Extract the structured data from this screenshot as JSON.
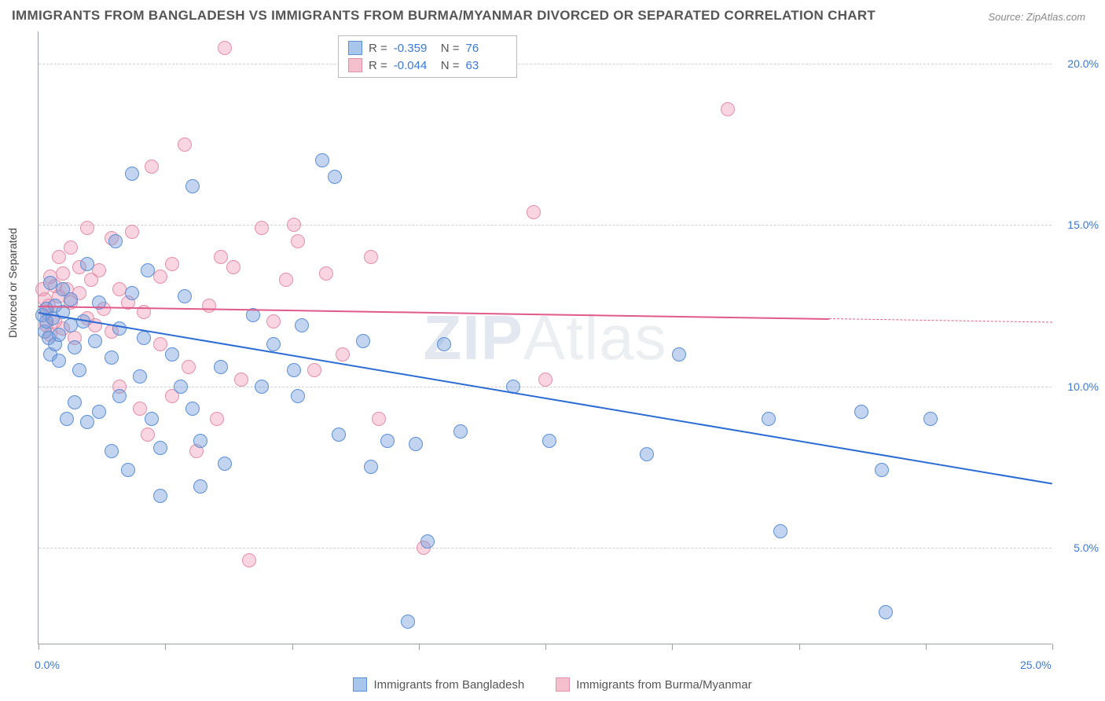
{
  "title": "IMMIGRANTS FROM BANGLADESH VS IMMIGRANTS FROM BURMA/MYANMAR DIVORCED OR SEPARATED CORRELATION CHART",
  "source": "Source: ZipAtlas.com",
  "ylabel": "Divorced or Separated",
  "watermark_bold": "ZIP",
  "watermark_rest": "Atlas",
  "chart": {
    "type": "scatter",
    "xlim": [
      0,
      25
    ],
    "ylim": [
      2,
      21
    ],
    "x_ticks": [
      0,
      3.125,
      6.25,
      9.375,
      12.5,
      15.625,
      18.75,
      21.875,
      25
    ],
    "x_labels_shown": {
      "0": "0.0%",
      "25": "25.0%"
    },
    "y_gridlines": [
      5,
      10,
      15,
      20
    ],
    "y_labels": {
      "5": "5.0%",
      "10": "10.0%",
      "15": "15.0%",
      "20": "20.0%"
    },
    "background_color": "#ffffff",
    "grid_color": "#d0d0d0",
    "axis_color": "#9aa0a6",
    "point_radius": 9,
    "point_stroke_width": 1,
    "series": [
      {
        "name": "Immigrants from Bangladesh",
        "fill": "rgba(120,160,220,0.45)",
        "stroke": "#5b8fd6",
        "swatch_fill": "#a8c5ec",
        "swatch_border": "#5b8fd6",
        "R": "-0.359",
        "N": "76",
        "trend": {
          "x1": 0,
          "y1": 12.3,
          "x2": 25,
          "y2": 7.0,
          "dash_from_x": null,
          "color": "#2b6cd4",
          "width": 2
        },
        "points": [
          [
            0.1,
            12.2
          ],
          [
            0.15,
            11.7
          ],
          [
            0.2,
            12.0
          ],
          [
            0.2,
            12.4
          ],
          [
            0.25,
            11.5
          ],
          [
            0.3,
            13.2
          ],
          [
            0.3,
            11.0
          ],
          [
            0.35,
            12.1
          ],
          [
            0.4,
            11.3
          ],
          [
            0.4,
            12.5
          ],
          [
            0.5,
            10.8
          ],
          [
            0.5,
            11.6
          ],
          [
            0.6,
            12.3
          ],
          [
            0.6,
            13.0
          ],
          [
            0.7,
            9.0
          ],
          [
            0.8,
            11.9
          ],
          [
            0.8,
            12.7
          ],
          [
            0.9,
            9.5
          ],
          [
            0.9,
            11.2
          ],
          [
            1.0,
            10.5
          ],
          [
            1.1,
            12.0
          ],
          [
            1.2,
            8.9
          ],
          [
            1.2,
            13.8
          ],
          [
            1.4,
            11.4
          ],
          [
            1.5,
            9.2
          ],
          [
            1.5,
            12.6
          ],
          [
            1.8,
            8.0
          ],
          [
            1.8,
            10.9
          ],
          [
            1.9,
            14.5
          ],
          [
            2.0,
            11.8
          ],
          [
            2.0,
            9.7
          ],
          [
            2.2,
            7.4
          ],
          [
            2.3,
            12.9
          ],
          [
            2.3,
            16.6
          ],
          [
            2.5,
            10.3
          ],
          [
            2.6,
            11.5
          ],
          [
            2.7,
            13.6
          ],
          [
            2.8,
            9.0
          ],
          [
            3.0,
            8.1
          ],
          [
            3.0,
            6.6
          ],
          [
            3.3,
            11.0
          ],
          [
            3.5,
            10.0
          ],
          [
            3.6,
            12.8
          ],
          [
            3.8,
            9.3
          ],
          [
            3.8,
            16.2
          ],
          [
            4.0,
            8.3
          ],
          [
            4.0,
            6.9
          ],
          [
            4.5,
            10.6
          ],
          [
            4.6,
            7.6
          ],
          [
            5.3,
            12.2
          ],
          [
            5.5,
            10.0
          ],
          [
            5.8,
            11.3
          ],
          [
            6.3,
            10.5
          ],
          [
            6.4,
            9.7
          ],
          [
            6.5,
            11.9
          ],
          [
            7.0,
            17.0
          ],
          [
            7.3,
            16.5
          ],
          [
            7.4,
            8.5
          ],
          [
            8.0,
            11.4
          ],
          [
            8.2,
            7.5
          ],
          [
            8.6,
            8.3
          ],
          [
            9.1,
            2.7
          ],
          [
            9.3,
            8.2
          ],
          [
            9.6,
            5.2
          ],
          [
            10.0,
            11.3
          ],
          [
            10.4,
            8.6
          ],
          [
            11.7,
            10.0
          ],
          [
            12.6,
            8.3
          ],
          [
            15.0,
            7.9
          ],
          [
            15.8,
            11.0
          ],
          [
            18.0,
            9.0
          ],
          [
            18.3,
            5.5
          ],
          [
            20.3,
            9.2
          ],
          [
            20.8,
            7.4
          ],
          [
            20.9,
            3.0
          ],
          [
            22.0,
            9.0
          ]
        ]
      },
      {
        "name": "Immigrants from Burma/Myanmar",
        "fill": "rgba(240,150,180,0.40)",
        "stroke": "#e48fa8",
        "swatch_fill": "#f4c0ce",
        "swatch_border": "#e48fa8",
        "R": "-0.044",
        "N": "63",
        "trend": {
          "x1": 0,
          "y1": 12.5,
          "x2": 25,
          "y2": 12.0,
          "dash_from_x": 19.5,
          "color": "#e05a8a",
          "width": 2
        },
        "points": [
          [
            0.1,
            13.0
          ],
          [
            0.15,
            12.7
          ],
          [
            0.2,
            12.3
          ],
          [
            0.2,
            11.9
          ],
          [
            0.25,
            12.5
          ],
          [
            0.3,
            13.4
          ],
          [
            0.3,
            11.6
          ],
          [
            0.4,
            12.0
          ],
          [
            0.4,
            13.1
          ],
          [
            0.5,
            12.8
          ],
          [
            0.5,
            14.0
          ],
          [
            0.6,
            11.8
          ],
          [
            0.6,
            13.5
          ],
          [
            0.7,
            13.0
          ],
          [
            0.8,
            12.6
          ],
          [
            0.8,
            14.3
          ],
          [
            0.9,
            11.5
          ],
          [
            1.0,
            12.9
          ],
          [
            1.0,
            13.7
          ],
          [
            1.2,
            12.1
          ],
          [
            1.2,
            14.9
          ],
          [
            1.3,
            13.3
          ],
          [
            1.4,
            11.9
          ],
          [
            1.5,
            13.6
          ],
          [
            1.6,
            12.4
          ],
          [
            1.8,
            14.6
          ],
          [
            1.8,
            11.7
          ],
          [
            2.0,
            13.0
          ],
          [
            2.0,
            10.0
          ],
          [
            2.2,
            12.6
          ],
          [
            2.3,
            14.8
          ],
          [
            2.5,
            9.3
          ],
          [
            2.6,
            12.3
          ],
          [
            2.7,
            8.5
          ],
          [
            2.8,
            16.8
          ],
          [
            3.0,
            13.4
          ],
          [
            3.0,
            11.3
          ],
          [
            3.3,
            9.7
          ],
          [
            3.3,
            13.8
          ],
          [
            3.6,
            17.5
          ],
          [
            3.7,
            10.6
          ],
          [
            3.9,
            8.0
          ],
          [
            4.2,
            12.5
          ],
          [
            4.4,
            9.0
          ],
          [
            4.5,
            14.0
          ],
          [
            4.6,
            20.5
          ],
          [
            4.8,
            13.7
          ],
          [
            5.0,
            10.2
          ],
          [
            5.2,
            4.6
          ],
          [
            5.5,
            14.9
          ],
          [
            5.8,
            12.0
          ],
          [
            6.1,
            13.3
          ],
          [
            6.3,
            15.0
          ],
          [
            6.4,
            14.5
          ],
          [
            6.8,
            10.5
          ],
          [
            7.1,
            13.5
          ],
          [
            7.5,
            11.0
          ],
          [
            8.2,
            14.0
          ],
          [
            8.4,
            9.0
          ],
          [
            9.5,
            5.0
          ],
          [
            12.2,
            15.4
          ],
          [
            12.5,
            10.2
          ],
          [
            17.0,
            18.6
          ]
        ]
      }
    ]
  },
  "legend_bottom": [
    {
      "label": "Immigrants from Bangladesh",
      "swatch_fill": "#a8c5ec",
      "swatch_border": "#5b8fd6"
    },
    {
      "label": "Immigrants from Burma/Myanmar",
      "swatch_fill": "#f4c0ce",
      "swatch_border": "#e48fa8"
    }
  ],
  "stats_labels": {
    "R": "R =",
    "N": "N ="
  }
}
